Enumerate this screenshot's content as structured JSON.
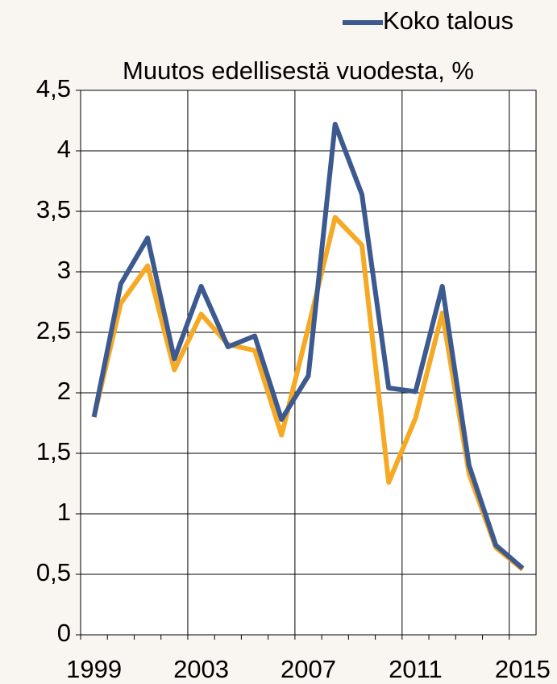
{
  "chart_data": {
    "type": "line",
    "title": "Muutos edellisestä vuodesta, %",
    "categories": [
      "1999",
      null,
      null,
      null,
      "2003",
      null,
      null,
      null,
      "2007",
      null,
      null,
      null,
      "2011",
      null,
      null,
      null,
      "2015"
    ],
    "series": [
      {
        "name": "Koko talous",
        "color": "#3c5a8f",
        "values": [
          1.8,
          2.9,
          3.28,
          2.28,
          2.88,
          2.38,
          2.47,
          1.78,
          2.14,
          4.22,
          3.64,
          2.04,
          2.01,
          2.88,
          1.4,
          0.74,
          0.55
        ]
      },
      {
        "color": "#f6a924",
        "values": [
          1.8,
          2.74,
          3.05,
          2.19,
          2.65,
          2.4,
          2.35,
          1.65,
          2.54,
          3.45,
          3.22,
          1.26,
          1.79,
          2.66,
          1.33,
          0.72,
          0.54
        ]
      }
    ],
    "ylim": [
      0,
      4.5
    ],
    "yticks": [
      0,
      {
        "value": 0.5,
        "label": "0,5"
      },
      1,
      {
        "value": 1.5,
        "label": "1,5"
      },
      2,
      {
        "value": 2.5,
        "label": "2,5"
      },
      3,
      {
        "value": 3.5,
        "label": "3,5"
      },
      4,
      {
        "value": 4.5,
        "label": "4,5"
      }
    ],
    "grid": true
  }
}
